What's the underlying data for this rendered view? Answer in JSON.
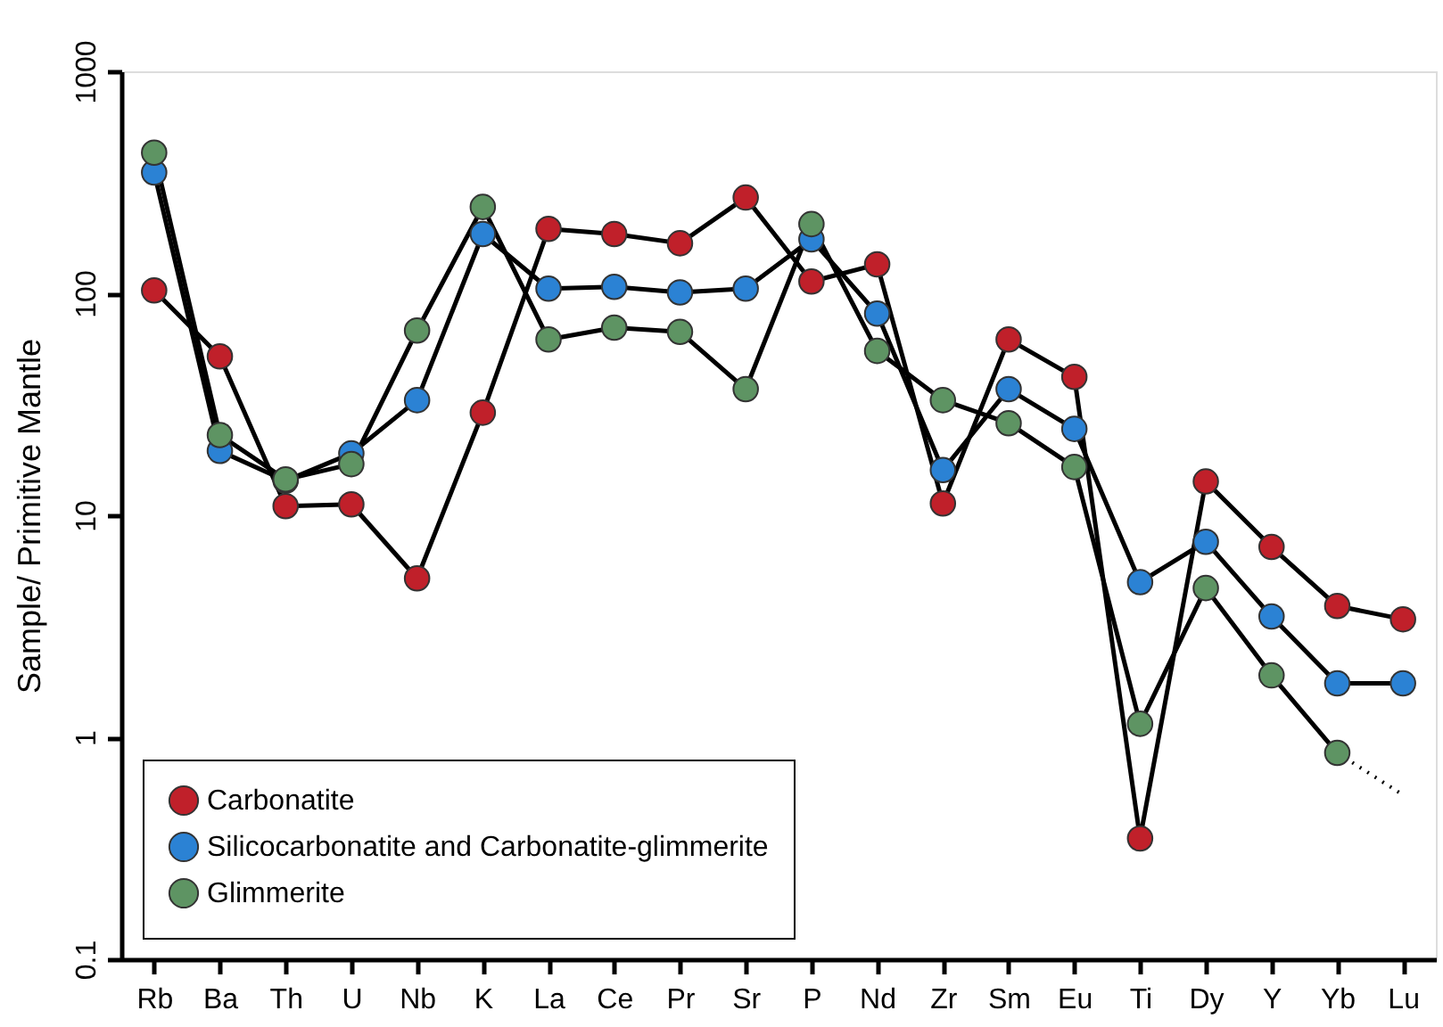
{
  "chart_data": {
    "type": "line",
    "ylabel": "Sample/ Primitive Mantle",
    "categories": [
      "Rb",
      "Ba",
      "Th",
      "U",
      "Nb",
      "K",
      "La",
      "Ce",
      "Pr",
      "Sr",
      "P",
      "Nd",
      "Zr",
      "Sm",
      "Eu",
      "Ti",
      "Dy",
      "Y",
      "Yb",
      "Lu"
    ],
    "log": true,
    "ylim": [
      0.1,
      1000
    ],
    "yticks": [
      0.1,
      1,
      10,
      100,
      1000
    ],
    "grid": false,
    "legend": "bottom left",
    "marker": "circle",
    "line_style": "solid",
    "series": [
      {
        "name": "Carbonatite",
        "color": "#c0202a",
        "values": [
          103,
          52,
          11,
          11.2,
          5.2,
          29,
          195,
          185,
          168,
          270,
          113,
          135,
          11.3,
          62,
          42,
          0.35,
          14.2,
          7.2,
          3.9,
          3.4
        ]
      },
      {
        "name": "Silicocarbonatite and Carbonatite-glimmerite",
        "color": "#2b82d4",
        "values": [
          350,
          19.5,
          14.3,
          19,
          33,
          185,
          105,
          107,
          101,
          105,
          175,
          81,
          16,
          37,
          24.5,
          5.0,
          7.6,
          3.5,
          1.75,
          1.75
        ]
      },
      {
        "name": "Glimmerite",
        "color": "#5e9463",
        "values": [
          430,
          23,
          14.5,
          17,
          68,
          245,
          62,
          70,
          67,
          37,
          205,
          55,
          33,
          26,
          16.5,
          1.15,
          4.7,
          1.9,
          0.85,
          null
        ]
      },
      {
        "color": "#000000",
        "line_style": "dotted",
        "marker": "none",
        "values": [
          null,
          null,
          null,
          null,
          null,
          null,
          null,
          null,
          null,
          null,
          null,
          null,
          null,
          null,
          null,
          null,
          null,
          null,
          0.85,
          0.55
        ]
      }
    ]
  }
}
